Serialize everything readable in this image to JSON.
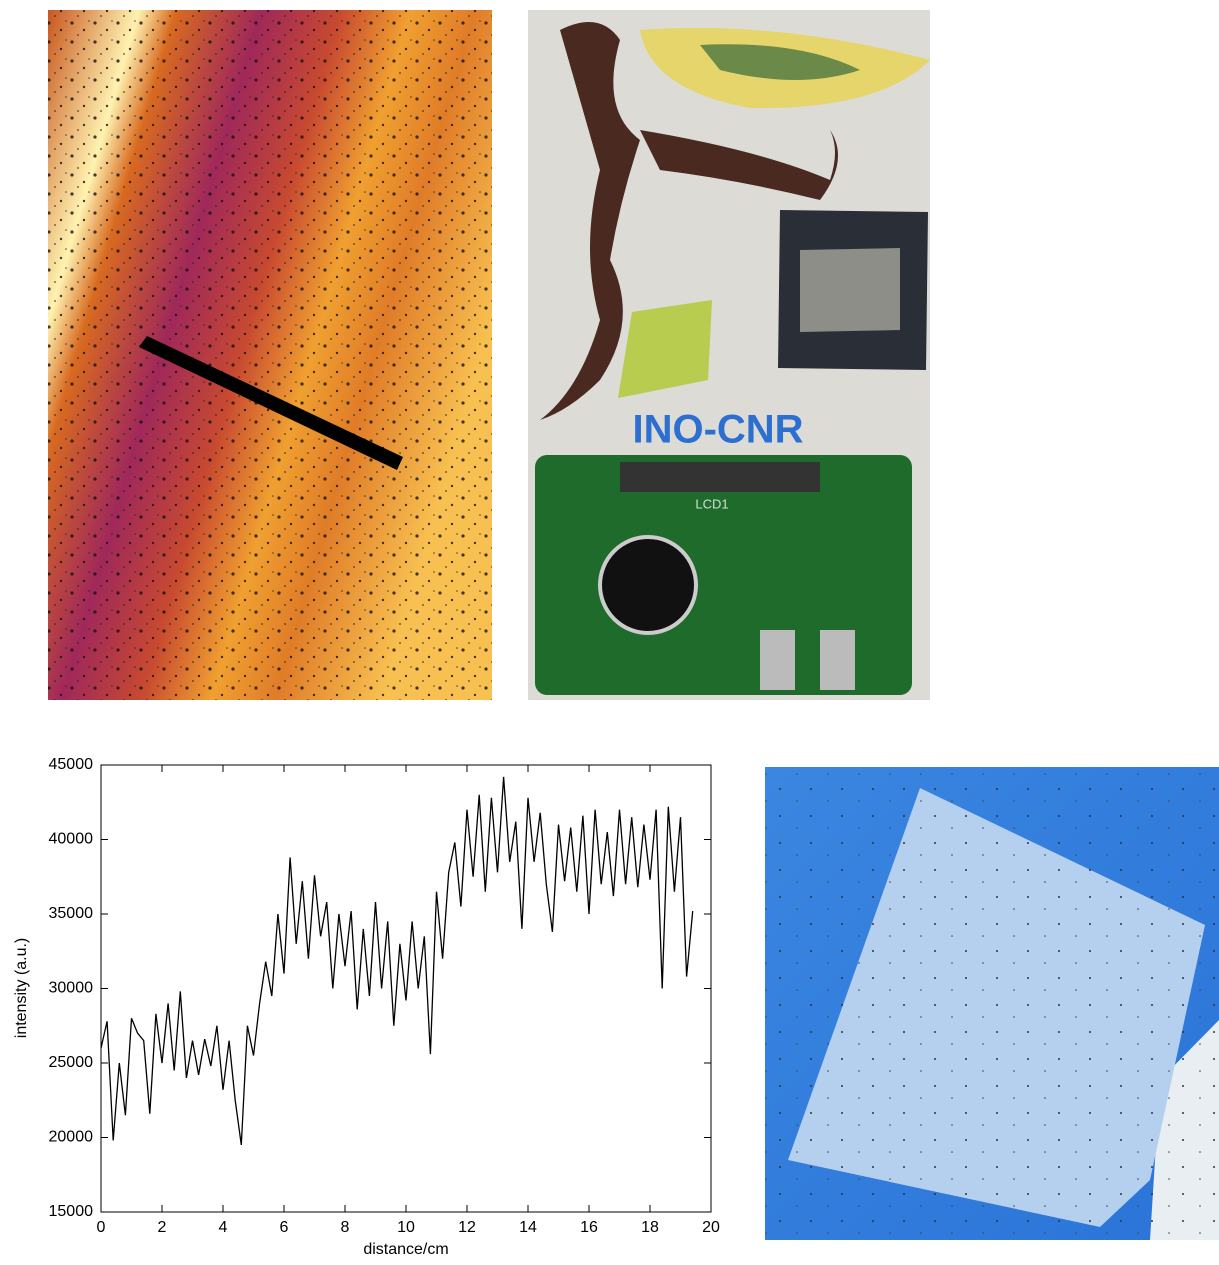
{
  "chart_data": {
    "type": "line",
    "xlabel": "distance/cm",
    "ylabel": "intensity (a.u.)",
    "xlim": [
      0,
      20
    ],
    "xticks": [
      0,
      2,
      4,
      6,
      8,
      10,
      12,
      14,
      16,
      18,
      20
    ],
    "ylim": [
      15000,
      45000
    ],
    "yticks": [
      15000,
      20000,
      25000,
      30000,
      35000,
      40000,
      45000
    ],
    "color": "#000000",
    "x": [
      0,
      0.2,
      0.4,
      0.6,
      0.8,
      1.0,
      1.2,
      1.4,
      1.6,
      1.8,
      2.0,
      2.2,
      2.4,
      2.6,
      2.8,
      3.0,
      3.2,
      3.4,
      3.6,
      3.8,
      4.0,
      4.2,
      4.4,
      4.6,
      4.8,
      5.0,
      5.2,
      5.4,
      5.6,
      5.8,
      6.0,
      6.2,
      6.4,
      6.6,
      6.8,
      7.0,
      7.2,
      7.4,
      7.6,
      7.8,
      8.0,
      8.2,
      8.4,
      8.6,
      8.8,
      9.0,
      9.2,
      9.4,
      9.6,
      9.8,
      10.0,
      10.2,
      10.4,
      10.6,
      10.8,
      11.0,
      11.2,
      11.4,
      11.6,
      11.8,
      12.0,
      12.2,
      12.4,
      12.6,
      12.8,
      13.0,
      13.2,
      13.4,
      13.6,
      13.8,
      14.0,
      14.2,
      14.4,
      14.6,
      14.8,
      15.0,
      15.2,
      15.4,
      15.6,
      15.8,
      16.0,
      16.2,
      16.4,
      16.6,
      16.8,
      17.0,
      17.2,
      17.4,
      17.6,
      17.8,
      18.0,
      18.2,
      18.4,
      18.6,
      18.8,
      19.0,
      19.2,
      19.4
    ],
    "values": [
      26000,
      27800,
      19800,
      25000,
      21500,
      28000,
      27000,
      26500,
      21600,
      28300,
      25000,
      29000,
      24500,
      29800,
      24000,
      26500,
      24200,
      26600,
      24800,
      27500,
      23200,
      26500,
      22500,
      19500,
      27500,
      25500,
      29000,
      31800,
      29500,
      35000,
      31000,
      38800,
      33000,
      37200,
      32000,
      37600,
      33500,
      35800,
      30000,
      35000,
      31500,
      35200,
      28600,
      34000,
      29500,
      35800,
      30000,
      34500,
      27500,
      33000,
      29200,
      34500,
      30000,
      33500,
      25600,
      36500,
      32000,
      37800,
      39800,
      35500,
      42000,
      37500,
      43000,
      36500,
      42800,
      37800,
      44200,
      38500,
      41200,
      34000,
      42800,
      38500,
      41800,
      37000,
      33800,
      41000,
      37200,
      40800,
      36500,
      41600,
      35000,
      42000,
      37000,
      40500,
      36200,
      42000,
      37000,
      41500,
      36800,
      41000,
      37300,
      42000,
      30000,
      42200,
      36500,
      41500,
      30800,
      35200
    ]
  },
  "photo": {
    "labels": [
      "INO-CNR",
      "LCD1"
    ]
  }
}
